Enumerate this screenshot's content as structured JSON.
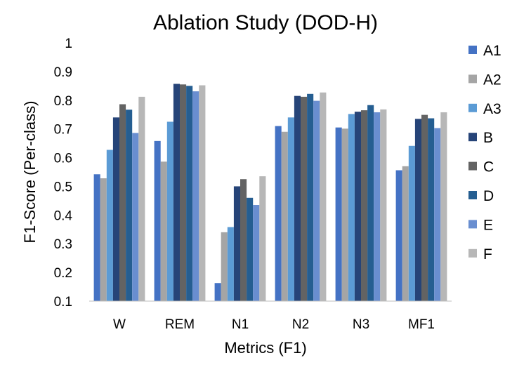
{
  "chart_data": {
    "type": "bar",
    "title": "Ablation Study (DOD-H)",
    "xlabel": "Metrics (F1)",
    "ylabel": "F1-Score  (Per-class)",
    "ylim": [
      0.1,
      1
    ],
    "yticks": [
      "0.1",
      "0.2",
      "0.3",
      "0.4",
      "0.5",
      "0.6",
      "0.7",
      "0.8",
      "0.9",
      "1"
    ],
    "grid": false,
    "legend_position": "right",
    "categories": [
      "W",
      "REM",
      "N1",
      "N2",
      "N3",
      "MF1"
    ],
    "series": [
      {
        "name": "A1",
        "color": "#4472C4",
        "values": [
          0.542,
          0.658,
          0.163,
          0.71,
          0.705,
          0.556
        ]
      },
      {
        "name": "A2",
        "color": "#A5A5A5",
        "values": [
          0.528,
          0.586,
          0.34,
          0.69,
          0.701,
          0.57
        ]
      },
      {
        "name": "A3",
        "color": "#5B9BD5",
        "values": [
          0.627,
          0.725,
          0.358,
          0.74,
          0.752,
          0.641
        ]
      },
      {
        "name": "B",
        "color": "#264478",
        "values": [
          0.74,
          0.857,
          0.5,
          0.815,
          0.76,
          0.735
        ]
      },
      {
        "name": "C",
        "color": "#636363",
        "values": [
          0.786,
          0.855,
          0.525,
          0.812,
          0.765,
          0.749
        ]
      },
      {
        "name": "D",
        "color": "#255E91",
        "values": [
          0.767,
          0.85,
          0.46,
          0.822,
          0.783,
          0.737
        ]
      },
      {
        "name": "E",
        "color": "#698ED0",
        "values": [
          0.686,
          0.831,
          0.435,
          0.798,
          0.758,
          0.703
        ]
      },
      {
        "name": "F",
        "color": "#B7B7B7",
        "values": [
          0.812,
          0.852,
          0.535,
          0.827,
          0.768,
          0.758
        ]
      }
    ]
  }
}
